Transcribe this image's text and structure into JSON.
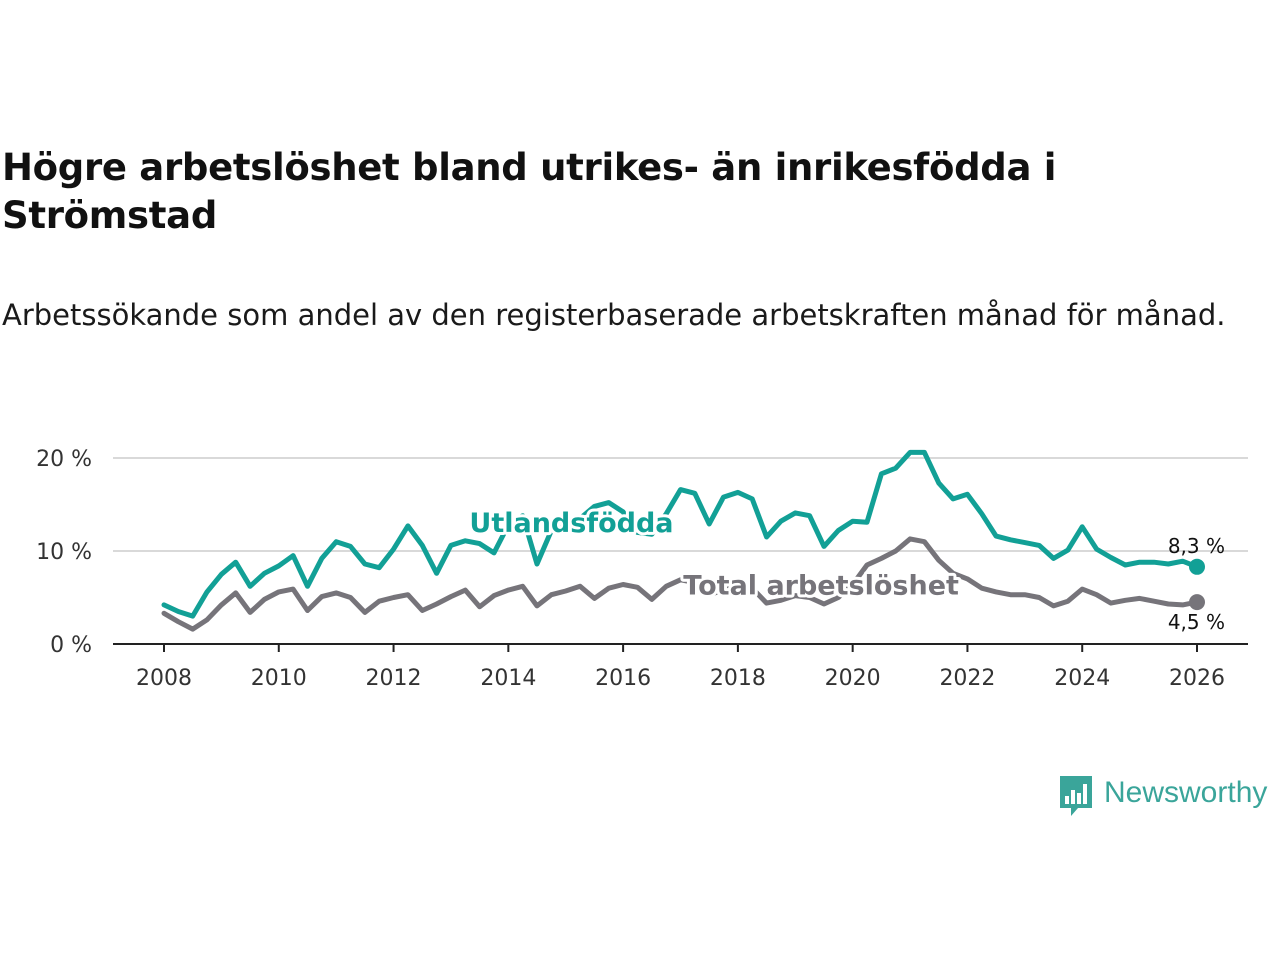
{
  "header": {
    "title": "Högre arbetslöshet bland utrikes- än inrikesfödda i Strömstad",
    "subtitle": "Arbetssökande som andel av den registerbaserade arbetskraften månad för månad."
  },
  "brand": {
    "name": "Newsworthy",
    "color": "#3aa59a"
  },
  "chart_data": {
    "type": "line",
    "title": "Högre arbetslöshet bland utrikes- än inrikesfödda i Strömstad",
    "subtitle": "Arbetssökande som andel av den registerbaserade arbetskraften månad för månad.",
    "xlabel": "",
    "ylabel": "",
    "xlim": [
      2007.1,
      2027.0
    ],
    "ylim": [
      0,
      20
    ],
    "x_ticks": [
      2008,
      2010,
      2012,
      2014,
      2016,
      2018,
      2020,
      2022,
      2024,
      2026
    ],
    "x_tick_labels": [
      "2008",
      "2010",
      "2012",
      "2014",
      "2016",
      "2018",
      "2020",
      "2022",
      "2024",
      "2026"
    ],
    "y_ticks": [
      0,
      10,
      20
    ],
    "y_tick_labels": [
      "0 %",
      "10 %",
      "20 %"
    ],
    "grid": true,
    "legend": "inline",
    "series": [
      {
        "name": "Total arbetslöshet",
        "color": "#76747a",
        "end_label": "4,5 %",
        "x": [
          2008.0,
          2008.25,
          2008.5,
          2008.75,
          2009.0,
          2009.25,
          2009.5,
          2009.75,
          2010.0,
          2010.25,
          2010.5,
          2010.75,
          2011.0,
          2011.25,
          2011.5,
          2011.75,
          2012.0,
          2012.25,
          2012.5,
          2012.75,
          2013.0,
          2013.25,
          2013.5,
          2013.75,
          2014.0,
          2014.25,
          2014.5,
          2014.75,
          2015.0,
          2015.25,
          2015.5,
          2015.75,
          2016.0,
          2016.25,
          2016.5,
          2016.75,
          2017.0,
          2017.25,
          2017.5,
          2017.75,
          2018.0,
          2018.25,
          2018.5,
          2018.75,
          2019.0,
          2019.25,
          2019.5,
          2019.75,
          2020.0,
          2020.25,
          2020.5,
          2020.75,
          2021.0,
          2021.25,
          2021.5,
          2021.75,
          2022.0,
          2022.25,
          2022.5,
          2022.75,
          2023.0,
          2023.25,
          2023.5,
          2023.75,
          2024.0,
          2024.25,
          2024.5,
          2024.75,
          2025.0,
          2025.25,
          2025.5,
          2025.75,
          2026.0
        ],
        "values": [
          3.3,
          2.4,
          1.6,
          2.6,
          4.2,
          5.5,
          3.4,
          4.8,
          5.6,
          5.9,
          3.6,
          5.1,
          5.5,
          5.0,
          3.4,
          4.6,
          5.0,
          5.3,
          3.6,
          4.3,
          5.1,
          5.8,
          4.0,
          5.2,
          5.8,
          6.2,
          4.1,
          5.3,
          5.7,
          6.2,
          4.9,
          6.0,
          6.4,
          6.1,
          4.8,
          6.2,
          6.9,
          6.6,
          5.3,
          5.8,
          6.2,
          6.0,
          4.4,
          4.7,
          5.2,
          5.0,
          4.3,
          5.0,
          6.4,
          8.5,
          9.2,
          10.0,
          11.3,
          11.0,
          9.0,
          7.6,
          7.0,
          6.0,
          5.6,
          5.3,
          5.3,
          5.0,
          4.1,
          4.6,
          5.9,
          5.3,
          4.4,
          4.7,
          4.9,
          4.6,
          4.3,
          4.2,
          4.5
        ]
      },
      {
        "name": "Utlandsfödda",
        "color": "#12a096",
        "end_label": "8,3 %",
        "x": [
          2008.0,
          2008.25,
          2008.5,
          2008.75,
          2009.0,
          2009.25,
          2009.5,
          2009.75,
          2010.0,
          2010.25,
          2010.5,
          2010.75,
          2011.0,
          2011.25,
          2011.5,
          2011.75,
          2012.0,
          2012.25,
          2012.5,
          2012.75,
          2013.0,
          2013.25,
          2013.5,
          2013.75,
          2014.0,
          2014.25,
          2014.5,
          2014.75,
          2015.0,
          2015.25,
          2015.5,
          2015.75,
          2016.0,
          2016.25,
          2016.5,
          2016.75,
          2017.0,
          2017.25,
          2017.5,
          2017.75,
          2018.0,
          2018.25,
          2018.5,
          2018.75,
          2019.0,
          2019.25,
          2019.5,
          2019.75,
          2020.0,
          2020.25,
          2020.5,
          2020.75,
          2021.0,
          2021.25,
          2021.5,
          2021.75,
          2022.0,
          2022.25,
          2022.5,
          2022.75,
          2023.0,
          2023.25,
          2023.5,
          2023.75,
          2024.0,
          2024.25,
          2024.5,
          2024.75,
          2025.0,
          2025.25,
          2025.5,
          2025.75,
          2026.0
        ],
        "values": [
          4.2,
          3.5,
          3.0,
          5.6,
          7.5,
          8.8,
          6.2,
          7.6,
          8.4,
          9.5,
          6.2,
          9.2,
          11.0,
          10.5,
          8.6,
          8.2,
          10.2,
          12.7,
          10.6,
          7.6,
          10.6,
          11.1,
          10.8,
          9.8,
          12.8,
          13.8,
          8.6,
          12.2,
          12.7,
          13.5,
          14.8,
          15.2,
          14.2,
          12.0,
          11.8,
          14.0,
          16.6,
          16.2,
          12.9,
          15.8,
          16.3,
          15.6,
          11.5,
          13.2,
          14.1,
          13.8,
          10.5,
          12.2,
          13.2,
          13.1,
          18.3,
          18.9,
          20.6,
          20.6,
          17.3,
          15.6,
          16.1,
          14.0,
          11.6,
          11.2,
          10.9,
          10.6,
          9.2,
          10.1,
          12.6,
          10.2,
          9.3,
          8.5,
          8.8,
          8.8,
          8.6,
          8.9,
          8.3
        ]
      }
    ],
    "annotations": [
      {
        "text": "Utlandsfödda",
        "series": "Utlandsfödda",
        "x": 2015.1,
        "y": 13.0
      },
      {
        "text": "Total arbetslöshet",
        "series": "Total arbetslöshet",
        "x": 2019.45,
        "y": 6.3
      }
    ]
  }
}
